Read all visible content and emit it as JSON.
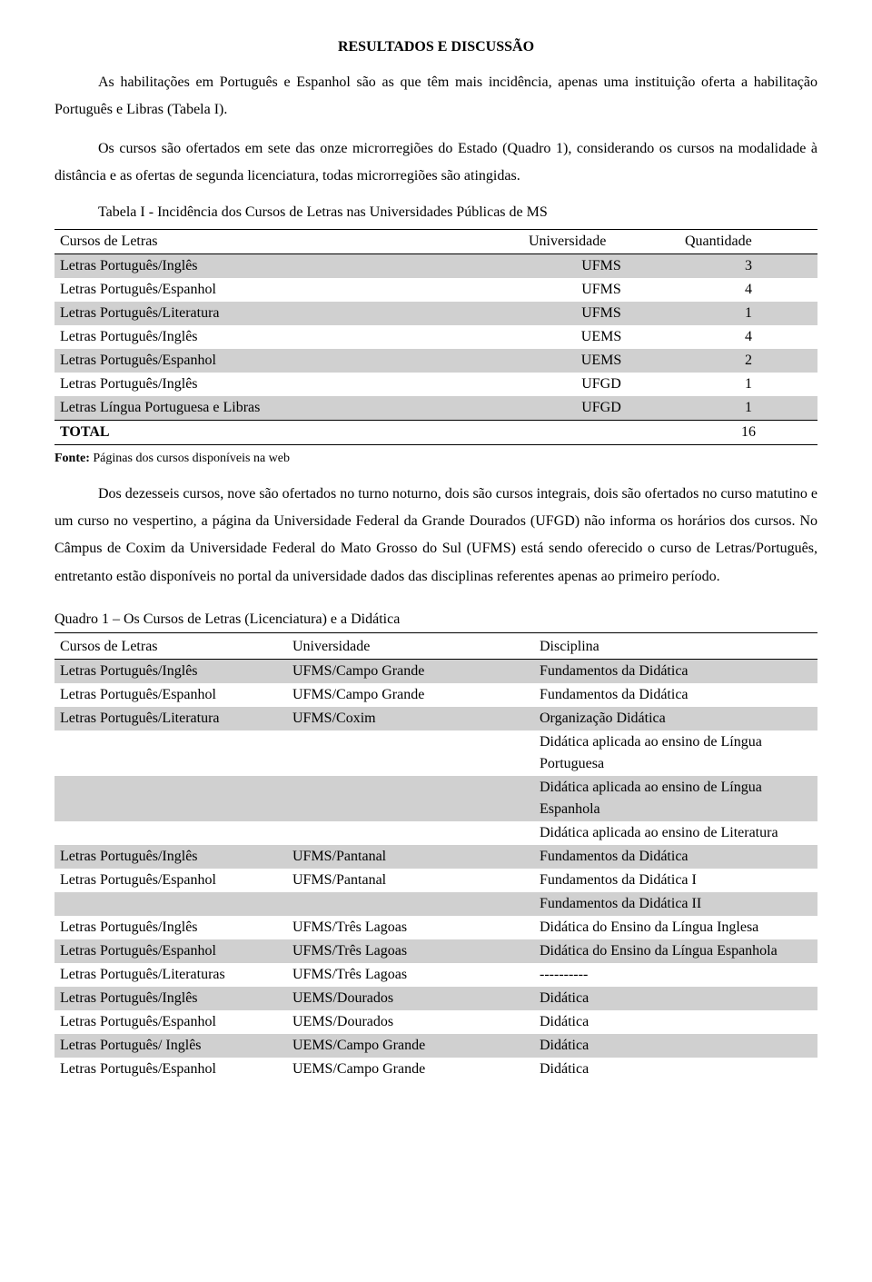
{
  "heading": "RESULTADOS E DISCUSSÃO",
  "p1": "As habilitações em Português e Espanhol são as que têm mais incidência, apenas uma instituição oferta a habilitação Português e Libras (Tabela I).",
  "p2": "Os cursos são ofertados em sete das onze microrregiões do Estado (Quadro 1), considerando os cursos na modalidade à distância e as ofertas de segunda licenciatura, todas microrregiões são atingidas.",
  "t1_title": "Tabela I - Incidência dos Cursos de Letras nas Universidades Públicas de MS",
  "t1": {
    "headers": {
      "c1": "Cursos de Letras",
      "c2": "Universidade",
      "c3": "Quantidade"
    },
    "rows": [
      {
        "c1": "Letras Português/Inglês",
        "c2": "UFMS",
        "c3": "3",
        "shade": true
      },
      {
        "c1": "Letras Português/Espanhol",
        "c2": "UFMS",
        "c3": "4",
        "shade": false
      },
      {
        "c1": "Letras Português/Literatura",
        "c2": "UFMS",
        "c3": "1",
        "shade": true
      },
      {
        "c1": "Letras Português/Inglês",
        "c2": "UEMS",
        "c3": "4",
        "shade": false
      },
      {
        "c1": "Letras Português/Espanhol",
        "c2": "UEMS",
        "c3": "2",
        "shade": true
      },
      {
        "c1": "Letras Português/Inglês",
        "c2": "UFGD",
        "c3": "1",
        "shade": false
      },
      {
        "c1": "Letras Língua Portuguesa e Libras",
        "c2": "UFGD",
        "c3": "1",
        "shade": true
      }
    ],
    "total_label": "TOTAL",
    "total_value": "16"
  },
  "fonte_label": "Fonte:",
  "fonte_text": " Páginas dos cursos disponíveis na web",
  "p3": "Dos dezesseis cursos, nove são ofertados no turno noturno, dois são cursos integrais, dois são ofertados no curso matutino e um curso no vespertino, a página da Universidade Federal da Grande Dourados (UFGD) não informa os horários dos cursos. No Câmpus de Coxim da Universidade Federal do Mato Grosso do Sul (UFMS) está sendo oferecido o curso de Letras/Português, entretanto estão disponíveis no portal da universidade dados das disciplinas referentes apenas ao primeiro período.",
  "q1_title": "Quadro 1 – Os Cursos de Letras (Licenciatura) e a Didática",
  "t2": {
    "headers": {
      "c1": "Cursos de Letras",
      "c2": "Universidade",
      "c3": "Disciplina"
    },
    "rows": [
      {
        "c1": "Letras Português/Inglês",
        "c2": "UFMS/Campo Grande",
        "c3": "Fundamentos da Didática",
        "shade": true
      },
      {
        "c1": "Letras Português/Espanhol",
        "c2": "UFMS/Campo Grande",
        "c3": "Fundamentos da Didática",
        "shade": false
      },
      {
        "c1": "Letras Português/Literatura",
        "c2": "UFMS/Coxim",
        "c3": "Organização Didática",
        "shade": true
      },
      {
        "c1": "",
        "c2": "",
        "c3": "Didática aplicada ao ensino de Língua Portuguesa",
        "shade": false
      },
      {
        "c1": "",
        "c2": "",
        "c3": "Didática aplicada ao ensino de Língua Espanhola",
        "shade": true
      },
      {
        "c1": "",
        "c2": "",
        "c3": "Didática aplicada ao ensino de Literatura",
        "shade": false
      },
      {
        "c1": "Letras Português/Inglês",
        "c2": "UFMS/Pantanal",
        "c3": "Fundamentos da Didática",
        "shade": true
      },
      {
        "c1": "Letras Português/Espanhol",
        "c2": "UFMS/Pantanal",
        "c3": "Fundamentos da Didática I",
        "shade": false
      },
      {
        "c1": "",
        "c2": "",
        "c3": "Fundamentos da Didática II",
        "shade": true
      },
      {
        "c1": "Letras Português/Inglês",
        "c2": "UFMS/Três Lagoas",
        "c3": "Didática do Ensino da Língua Inglesa",
        "shade": false
      },
      {
        "c1": "Letras  Português/Espanhol",
        "c2": "UFMS/Três Lagoas",
        "c3": "Didática do Ensino da Língua Espanhola",
        "shade": true
      },
      {
        "c1": "Letras Português/Literaturas",
        "c2": "UFMS/Três Lagoas",
        "c3": "----------",
        "shade": false
      },
      {
        "c1": "Letras Português/Inglês",
        "c2": "UEMS/Dourados",
        "c3": "Didática",
        "shade": true
      },
      {
        "c1": "Letras Português/Espanhol",
        "c2": "UEMS/Dourados",
        "c3": "Didática",
        "shade": false
      },
      {
        "c1": "Letras Português/ Inglês",
        "c2": "UEMS/Campo Grande",
        "c3": "Didática",
        "shade": true
      },
      {
        "c1": "Letras Português/Espanhol",
        "c2": "UEMS/Campo Grande",
        "c3": "Didática",
        "shade": false
      }
    ]
  }
}
